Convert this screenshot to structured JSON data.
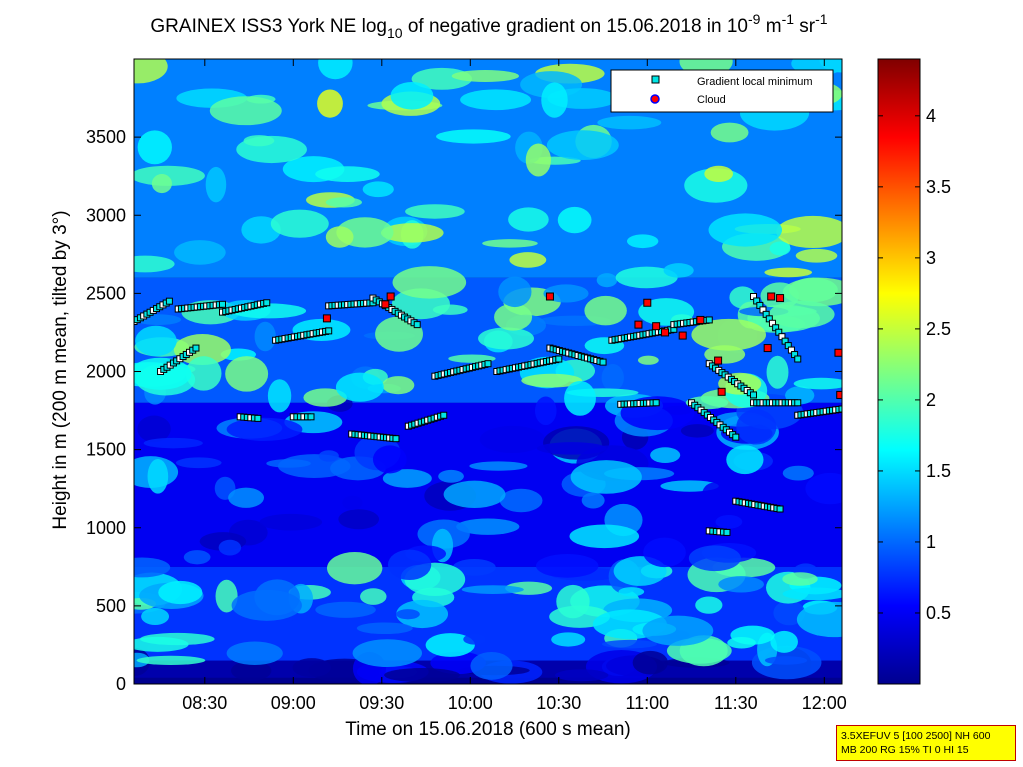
{
  "chart_data": {
    "type": "heatmap",
    "title_parts": {
      "pre": "GRAINEX ISS3 York NE log",
      "sub": "10",
      "mid": " of negative gradient on 15.06.2018 in 10",
      "sup1": "-9",
      "unit1": " m",
      "sup2": "-1",
      "unit2": " sr",
      "sup3": "-1"
    },
    "xlabel": "Time on 15.06.2018 (600 s mean)",
    "ylabel": "Height in m (200 m mean, tilted by 3°)",
    "x_ticks": [
      "08:30",
      "09:00",
      "09:30",
      "10:00",
      "10:30",
      "11:00",
      "11:30",
      "12:00"
    ],
    "x_tick_hours": [
      8.5,
      9.0,
      9.5,
      10.0,
      10.5,
      11.0,
      11.5,
      12.0
    ],
    "xlim_hours": [
      8.1,
      12.1
    ],
    "y_ticks": [
      "0",
      "500",
      "1000",
      "1500",
      "2000",
      "2500",
      "3000",
      "3500"
    ],
    "y_tick_values": [
      0,
      500,
      1000,
      1500,
      2000,
      2500,
      3000,
      3500
    ],
    "ylim": [
      0,
      4000
    ],
    "colorbar": {
      "ticks": [
        "0.5",
        "1",
        "1.5",
        "2",
        "2.5",
        "3",
        "3.5",
        "4"
      ],
      "tick_values": [
        0.5,
        1.0,
        1.5,
        2.0,
        2.5,
        3.0,
        3.5,
        4.0
      ],
      "range": [
        0.0,
        4.4
      ],
      "colormap": "jet"
    },
    "legend": {
      "placement": "top-right",
      "entries": [
        {
          "label": "Gradient local minimum",
          "marker": "square",
          "color": "#00e5e5"
        },
        {
          "label": "Cloud",
          "marker": "circle",
          "color": "#ff0000"
        }
      ]
    },
    "layers": [
      {
        "h_min": 40,
        "h_max": 150,
        "level": 0.35
      },
      {
        "h_min": 150,
        "h_max": 750,
        "level": 1.4
      },
      {
        "h_min": 750,
        "h_max": 1800,
        "level": 0.9
      },
      {
        "h_min": 1800,
        "h_max": 2600,
        "level": 1.7
      },
      {
        "h_min": 2600,
        "h_max": 4000,
        "level": 2.0
      }
    ],
    "gradient_minima_segments": [
      {
        "t_start": 8.1,
        "t_end": 8.3,
        "h_start": 2320,
        "h_end": 2450
      },
      {
        "t_start": 8.25,
        "t_end": 8.45,
        "h_start": 2000,
        "h_end": 2150
      },
      {
        "t_start": 8.35,
        "t_end": 8.6,
        "h_start": 2400,
        "h_end": 2430
      },
      {
        "t_start": 8.6,
        "t_end": 8.85,
        "h_start": 2380,
        "h_end": 2440
      },
      {
        "t_start": 8.9,
        "t_end": 9.2,
        "h_start": 2200,
        "h_end": 2260
      },
      {
        "t_start": 9.2,
        "t_end": 9.45,
        "h_start": 2420,
        "h_end": 2440
      },
      {
        "t_start": 9.45,
        "t_end": 9.7,
        "h_start": 2470,
        "h_end": 2300
      },
      {
        "t_start": 9.33,
        "t_end": 9.58,
        "h_start": 1600,
        "h_end": 1570
      },
      {
        "t_start": 9.65,
        "t_end": 9.85,
        "h_start": 1650,
        "h_end": 1720
      },
      {
        "t_start": 9.8,
        "t_end": 10.1,
        "h_start": 1970,
        "h_end": 2050
      },
      {
        "t_start": 10.15,
        "t_end": 10.5,
        "h_start": 2000,
        "h_end": 2080
      },
      {
        "t_start": 10.45,
        "t_end": 10.75,
        "h_start": 2150,
        "h_end": 2060
      },
      {
        "t_start": 10.8,
        "t_end": 11.15,
        "h_start": 2200,
        "h_end": 2270
      },
      {
        "t_start": 11.15,
        "t_end": 11.35,
        "h_start": 2300,
        "h_end": 2330
      },
      {
        "t_start": 11.35,
        "t_end": 11.6,
        "h_start": 2050,
        "h_end": 1850
      },
      {
        "t_start": 11.6,
        "t_end": 11.85,
        "h_start": 1800,
        "h_end": 1800
      },
      {
        "t_start": 11.85,
        "t_end": 12.1,
        "h_start": 1720,
        "h_end": 1760
      },
      {
        "t_start": 11.25,
        "t_end": 11.5,
        "h_start": 1800,
        "h_end": 1580
      },
      {
        "t_start": 11.6,
        "t_end": 11.85,
        "h_start": 2480,
        "h_end": 2080
      },
      {
        "t_start": 10.85,
        "t_end": 11.05,
        "h_start": 1790,
        "h_end": 1800
      },
      {
        "t_start": 11.5,
        "t_end": 11.75,
        "h_start": 1170,
        "h_end": 1120
      },
      {
        "t_start": 11.35,
        "t_end": 11.45,
        "h_start": 980,
        "h_end": 970
      },
      {
        "t_start": 9.0,
        "t_end": 9.1,
        "h_start": 1710,
        "h_end": 1710
      },
      {
        "t_start": 8.7,
        "t_end": 8.8,
        "h_start": 1710,
        "h_end": 1700
      }
    ],
    "cloud_points": [
      {
        "t": 9.19,
        "h": 2340
      },
      {
        "t": 9.55,
        "h": 2480
      },
      {
        "t": 9.52,
        "h": 2430
      },
      {
        "t": 10.45,
        "h": 2480
      },
      {
        "t": 10.95,
        "h": 2300
      },
      {
        "t": 11.0,
        "h": 2440
      },
      {
        "t": 11.05,
        "h": 2290
      },
      {
        "t": 11.1,
        "h": 2250
      },
      {
        "t": 11.2,
        "h": 2230
      },
      {
        "t": 11.3,
        "h": 2330
      },
      {
        "t": 11.4,
        "h": 2070
      },
      {
        "t": 11.42,
        "h": 1870
      },
      {
        "t": 11.7,
        "h": 2480
      },
      {
        "t": 11.75,
        "h": 2470
      },
      {
        "t": 11.68,
        "h": 2150
      },
      {
        "t": 12.08,
        "h": 2120
      },
      {
        "t": 12.09,
        "h": 1850
      }
    ]
  },
  "info_box": {
    "line1": "3.5XEFUV 5 [100 2500] NH 600",
    "line2": "MB 200 RG 15% TI 0 HI 15"
  }
}
